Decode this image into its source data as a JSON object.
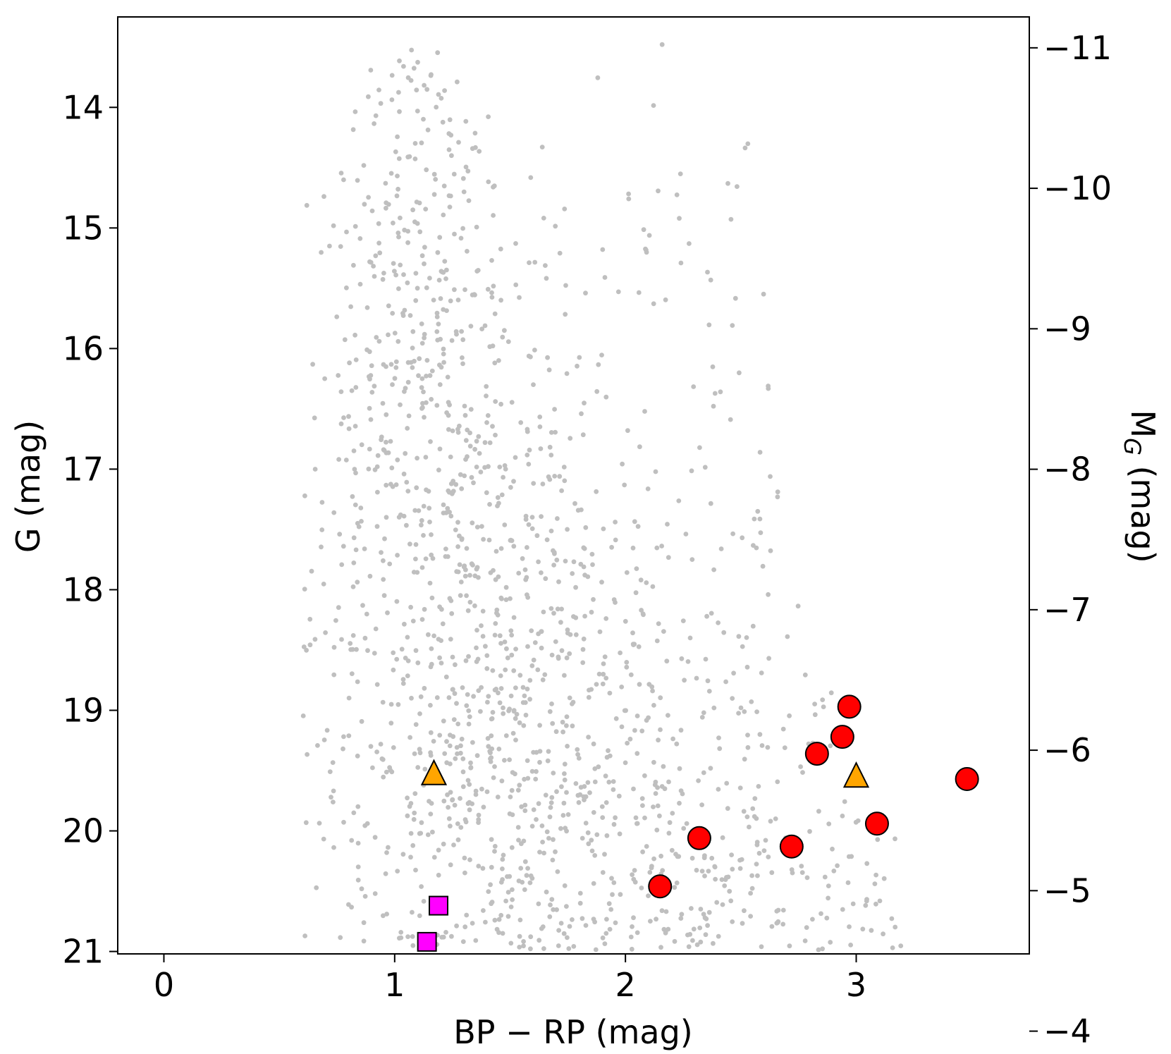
{
  "chart_data": {
    "type": "scatter",
    "title": "",
    "xlabel": "BP − RP (mag)",
    "ylabel_left": "G (mag)",
    "ylabel_right_main": "M",
    "ylabel_right_sub": "G",
    "ylabel_right_suffix": " (mag)",
    "xlim": [
      -0.2,
      3.75
    ],
    "ylim_left": [
      21.02,
      13.25
    ],
    "ylim_right": [
      -4.55,
      -11.22
    ],
    "xticks": [
      {
        "value": 0,
        "label": "0"
      },
      {
        "value": 1,
        "label": "1"
      },
      {
        "value": 2,
        "label": "2"
      },
      {
        "value": 3,
        "label": "3"
      }
    ],
    "yticks_left": [
      {
        "value": 14,
        "label": "14"
      },
      {
        "value": 15,
        "label": "15"
      },
      {
        "value": 16,
        "label": "16"
      },
      {
        "value": 17,
        "label": "17"
      },
      {
        "value": 18,
        "label": "18"
      },
      {
        "value": 19,
        "label": "19"
      },
      {
        "value": 20,
        "label": "20"
      },
      {
        "value": 21,
        "label": "21"
      }
    ],
    "yticks_right": [
      {
        "value": -11,
        "label": "−11"
      },
      {
        "value": -10,
        "label": "−10"
      },
      {
        "value": -9,
        "label": "−9"
      },
      {
        "value": -8,
        "label": "−8"
      },
      {
        "value": -7,
        "label": "−7"
      },
      {
        "value": -6,
        "label": "−6"
      },
      {
        "value": -5,
        "label": "−5"
      },
      {
        "value": -4,
        "label": "−4"
      }
    ],
    "grid": false,
    "series": [
      {
        "marker": "circle",
        "color": "#ff0000",
        "points": [
          [
            2.97,
            18.97
          ],
          [
            2.94,
            19.22
          ],
          [
            2.83,
            19.36
          ],
          [
            3.48,
            19.57
          ],
          [
            3.09,
            19.94
          ],
          [
            2.32,
            20.06
          ],
          [
            2.72,
            20.13
          ],
          [
            2.15,
            20.46
          ]
        ]
      },
      {
        "marker": "triangle",
        "color": "#ffa500",
        "points": [
          [
            1.17,
            19.54
          ],
          [
            3.0,
            19.56
          ]
        ]
      },
      {
        "marker": "square",
        "color": "#ff00ff",
        "points": [
          [
            1.19,
            20.62
          ],
          [
            1.14,
            20.92
          ]
        ]
      }
    ],
    "background_stars": {
      "color": "#bfbfbf",
      "description_count": 1700
    }
  }
}
